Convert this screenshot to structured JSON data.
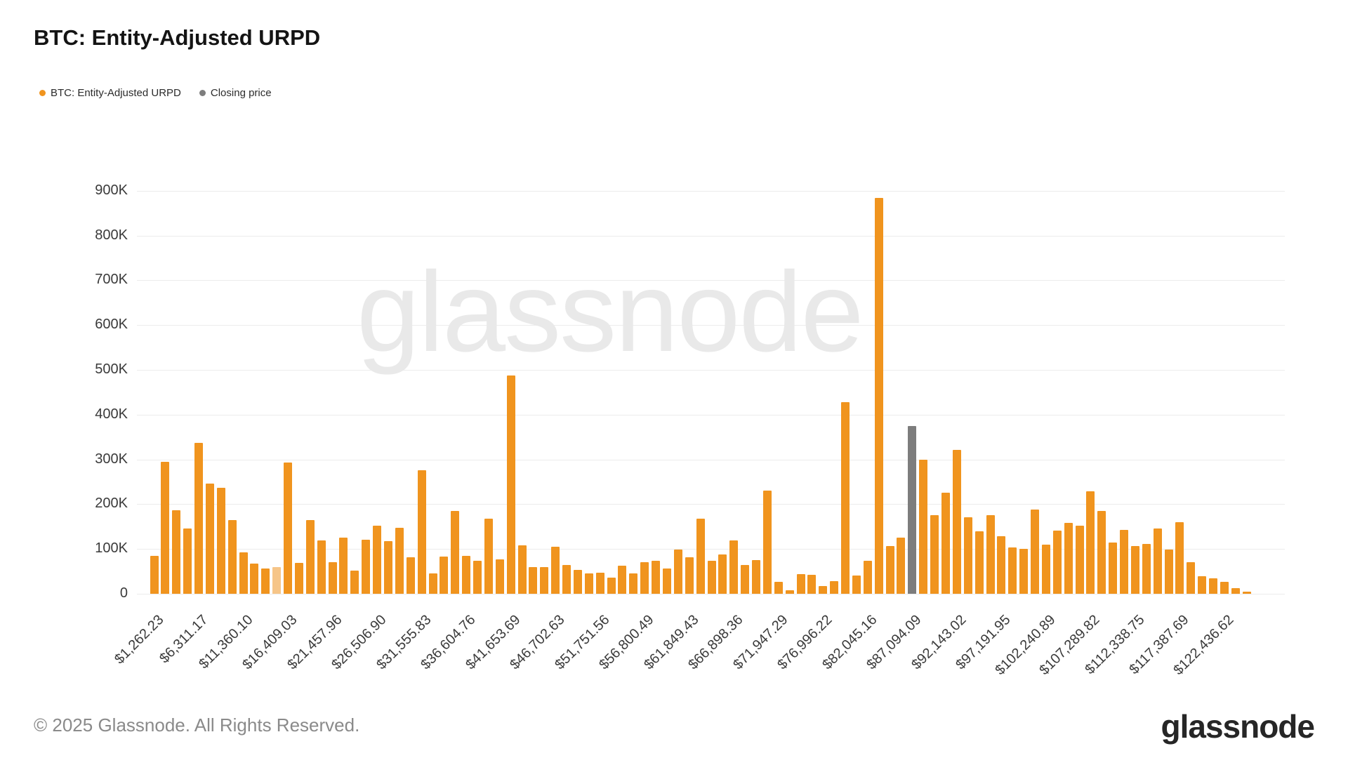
{
  "header": {
    "title": "BTC: Entity-Adjusted URPD"
  },
  "legend": [
    {
      "label": "BTC: Entity-Adjusted URPD",
      "color": "#F0941E"
    },
    {
      "label": "Closing price",
      "color": "#7D7D7D"
    }
  ],
  "watermark_text": "glassnode",
  "footer": {
    "copyright": "© 2025 Glassnode. All Rights Reserved.",
    "logo_text": "glassnode"
  },
  "colors": {
    "bar": "#F0941E",
    "bar_highlight": "#F6C588",
    "closing_price_bar": "#7D7D7D",
    "gridline": "#ececec",
    "axis_text": "#3a3a3a"
  },
  "chart_data": {
    "type": "bar",
    "title": "BTC: Entity-Adjusted URPD",
    "ylabel": "",
    "xlabel": "",
    "y_unit": "BTC (thousands)",
    "ylim": [
      0,
      940
    ],
    "grid": true,
    "legend_position": "top-left",
    "y_ticks": [
      "0",
      "100K",
      "200K",
      "300K",
      "400K",
      "500K",
      "600K",
      "700K",
      "800K",
      "900K"
    ],
    "series": [
      {
        "name": "BTC: Entity-Adjusted URPD",
        "color": "#F0941E"
      },
      {
        "name": "Closing price",
        "color": "#7D7D7D"
      }
    ],
    "values_k": [
      84,
      295,
      187,
      146,
      337,
      246,
      237,
      164,
      93,
      68,
      57,
      60,
      293,
      69,
      164,
      119,
      71,
      125,
      51,
      121,
      152,
      118,
      147,
      81,
      276,
      46,
      83,
      185,
      85,
      74,
      167,
      77,
      487,
      108,
      59,
      60,
      105,
      64,
      54,
      45,
      47,
      36,
      62,
      45,
      71,
      74,
      57,
      99,
      82,
      167,
      73,
      88,
      119,
      64,
      76,
      231,
      26,
      8,
      44,
      43,
      17,
      28,
      428,
      40,
      73,
      884,
      106,
      126,
      375,
      300,
      175,
      225,
      322,
      171,
      140,
      176,
      129,
      104,
      100,
      188,
      109,
      141,
      158,
      152,
      229,
      185,
      115,
      143,
      107,
      112,
      146,
      98,
      160,
      70,
      39,
      34,
      26,
      12,
      5
    ],
    "closing_price_bar_index": 68,
    "closing_price_value_k": 375,
    "highlighted_bar_index": 11,
    "x_ticks": [
      {
        "index": 0,
        "label": "$1,262.23"
      },
      {
        "index": 4,
        "label": "$6,311.17"
      },
      {
        "index": 8,
        "label": "$11,360.10"
      },
      {
        "index": 12,
        "label": "$16,409.03"
      },
      {
        "index": 16,
        "label": "$21,457.96"
      },
      {
        "index": 20,
        "label": "$26,506.90"
      },
      {
        "index": 24,
        "label": "$31,555.83"
      },
      {
        "index": 28,
        "label": "$36,604.76"
      },
      {
        "index": 32,
        "label": "$41,653.69"
      },
      {
        "index": 36,
        "label": "$46,702.63"
      },
      {
        "index": 40,
        "label": "$51,751.56"
      },
      {
        "index": 44,
        "label": "$56,800.49"
      },
      {
        "index": 48,
        "label": "$61,849.43"
      },
      {
        "index": 52,
        "label": "$66,898.36"
      },
      {
        "index": 56,
        "label": "$71,947.29"
      },
      {
        "index": 60,
        "label": "$76,996.22"
      },
      {
        "index": 64,
        "label": "$82,045.16"
      },
      {
        "index": 68,
        "label": "$87,094.09"
      },
      {
        "index": 72,
        "label": "$92,143.02"
      },
      {
        "index": 76,
        "label": "$97,191.95"
      },
      {
        "index": 80,
        "label": "$102,240.89"
      },
      {
        "index": 84,
        "label": "$107,289.82"
      },
      {
        "index": 88,
        "label": "$112,338.75"
      },
      {
        "index": 92,
        "label": "$117,387.69"
      },
      {
        "index": 96,
        "label": "$122,436.62"
      }
    ]
  }
}
